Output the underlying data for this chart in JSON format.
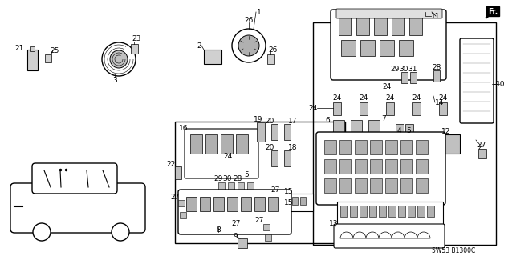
{
  "background_color": "#ffffff",
  "diagram_code": "5W53 B1300C",
  "main_border": [
    390,
    28,
    228,
    278
  ],
  "sub_border": [
    218,
    152,
    212,
    152
  ],
  "fr_label": "Fr."
}
